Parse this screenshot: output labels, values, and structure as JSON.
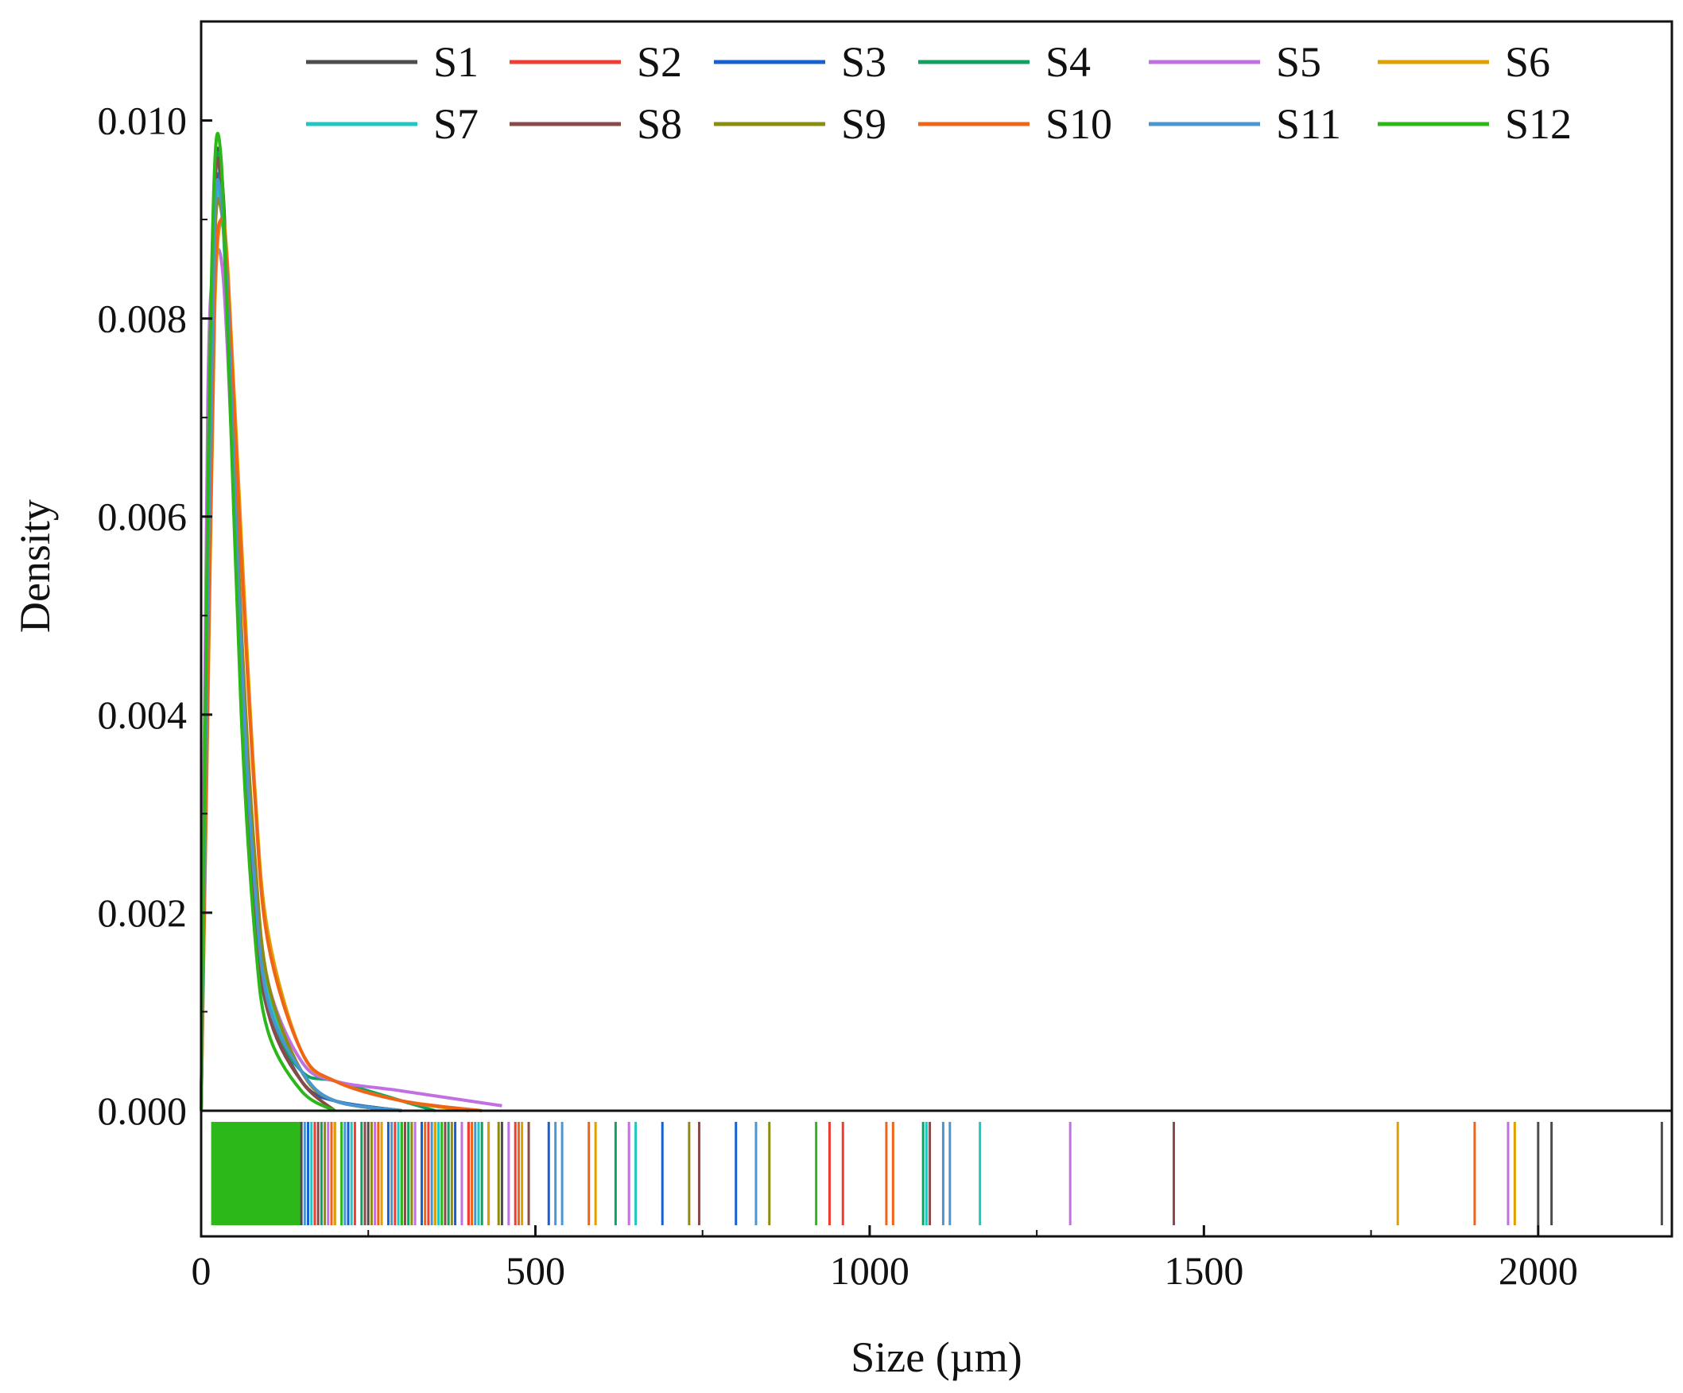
{
  "chart_data": {
    "type": "line",
    "title": "",
    "xlabel": "Size (µm)",
    "ylabel": "Density",
    "xlim": [
      0,
      2200
    ],
    "ylim": [
      0,
      0.011
    ],
    "x_ticks": [
      0,
      500,
      1000,
      1500,
      2000
    ],
    "x_tick_labels": [
      "0",
      "500",
      "1000",
      "1500",
      "2000"
    ],
    "y_ticks": [
      0,
      0.002,
      0.004,
      0.006,
      0.008,
      0.01
    ],
    "y_tick_labels": [
      "0.000",
      "0.002",
      "0.004",
      "0.006",
      "0.008",
      "0.010"
    ],
    "legend_position": "top",
    "grid": false,
    "rug_panel": true,
    "series": [
      {
        "name": "S1",
        "color": "#4d4d4d",
        "x": [
          0,
          10,
          20,
          30,
          40,
          60,
          80,
          100,
          150,
          200,
          300
        ],
        "y": [
          0,
          0.0055,
          0.0093,
          0.0095,
          0.0082,
          0.0045,
          0.0022,
          0.001,
          0.0003,
          0.0001,
          0
        ],
        "rug": [
          150,
          200,
          250,
          300,
          350,
          400,
          450,
          2000,
          2020,
          2185
        ]
      },
      {
        "name": "S2",
        "color": "#f03c32",
        "x": [
          0,
          10,
          20,
          30,
          40,
          60,
          80,
          100,
          150,
          200,
          300
        ],
        "y": [
          0,
          0.005,
          0.0088,
          0.0092,
          0.008,
          0.0048,
          0.0025,
          0.0012,
          0.0004,
          0.0001,
          0
        ],
        "rug": [
          170,
          230,
          290,
          340,
          400,
          470,
          940,
          960
        ]
      },
      {
        "name": "S3",
        "color": "#1660d0",
        "x": [
          0,
          10,
          20,
          30,
          40,
          60,
          80,
          100,
          150,
          200,
          300
        ],
        "y": [
          0,
          0.0052,
          0.009,
          0.0093,
          0.0081,
          0.0046,
          0.0023,
          0.0011,
          0.0003,
          0.0001,
          0
        ],
        "rug": [
          160,
          220,
          280,
          330,
          380,
          430,
          520,
          690,
          800
        ]
      },
      {
        "name": "S4",
        "color": "#10a060",
        "x": [
          0,
          10,
          20,
          30,
          40,
          60,
          80,
          100,
          150,
          200,
          300,
          350
        ],
        "y": [
          0,
          0.006,
          0.0094,
          0.0093,
          0.0078,
          0.0042,
          0.002,
          0.001,
          0.0004,
          0.0003,
          0.0001,
          0
        ],
        "rug": [
          180,
          240,
          310,
          370,
          420,
          620,
          1080
        ]
      },
      {
        "name": "S5",
        "color": "#c070e0",
        "x": [
          0,
          10,
          20,
          30,
          40,
          60,
          80,
          100,
          150,
          200,
          300,
          450
        ],
        "y": [
          0,
          0.0072,
          0.0085,
          0.0086,
          0.0076,
          0.0046,
          0.0025,
          0.0013,
          0.0005,
          0.0003,
          0.0002,
          5e-05
        ],
        "rug": [
          190,
          260,
          320,
          390,
          460,
          640,
          1300,
          1955
        ]
      },
      {
        "name": "S6",
        "color": "#e0a000",
        "x": [
          0,
          10,
          20,
          30,
          40,
          60,
          80,
          100,
          150,
          200,
          300,
          400
        ],
        "y": [
          0,
          0.004,
          0.008,
          0.009,
          0.0085,
          0.0058,
          0.0033,
          0.0018,
          0.0006,
          0.0003,
          0.0001,
          0
        ],
        "rug": [
          200,
          270,
          350,
          430,
          480,
          590,
          1790,
          1965
        ]
      },
      {
        "name": "S7",
        "color": "#20c8c0",
        "x": [
          0,
          10,
          20,
          30,
          40,
          60,
          80,
          100,
          150,
          200,
          300
        ],
        "y": [
          0,
          0.005,
          0.0089,
          0.0091,
          0.008,
          0.0047,
          0.0024,
          0.0012,
          0.0004,
          0.0001,
          0
        ],
        "rug": [
          165,
          225,
          295,
          355,
          415,
          650,
          1085,
          1165
        ]
      },
      {
        "name": "S8",
        "color": "#8b4a4a",
        "x": [
          0,
          10,
          20,
          30,
          40,
          60,
          80,
          100,
          150,
          200
        ],
        "y": [
          0,
          0.0055,
          0.0092,
          0.0094,
          0.008,
          0.0044,
          0.0021,
          0.001,
          0.0003,
          0
        ],
        "rug": [
          175,
          245,
          305,
          365,
          490,
          745,
          1090,
          1455
        ]
      },
      {
        "name": "S9",
        "color": "#8c8c10",
        "x": [
          0,
          10,
          20,
          30,
          40,
          60,
          80,
          100,
          150,
          200,
          300
        ],
        "y": [
          0,
          0.0048,
          0.0087,
          0.0091,
          0.0081,
          0.0049,
          0.0026,
          0.0013,
          0.0004,
          0.0001,
          0
        ],
        "rug": [
          185,
          255,
          315,
          375,
          445,
          730,
          850
        ]
      },
      {
        "name": "S10",
        "color": "#f06418",
        "x": [
          0,
          10,
          20,
          30,
          40,
          60,
          80,
          100,
          150,
          200,
          300,
          420
        ],
        "y": [
          0,
          0.0042,
          0.0082,
          0.009,
          0.0084,
          0.0056,
          0.0032,
          0.0017,
          0.0006,
          0.0003,
          0.0001,
          0
        ],
        "rug": [
          195,
          265,
          335,
          405,
          475,
          580,
          1025,
          1035,
          1905
        ]
      },
      {
        "name": "S11",
        "color": "#4a96d0",
        "x": [
          0,
          10,
          20,
          30,
          40,
          60,
          80,
          100,
          150,
          200,
          300
        ],
        "y": [
          0,
          0.0053,
          0.009,
          0.0092,
          0.0081,
          0.0046,
          0.0023,
          0.0011,
          0.0004,
          0.0001,
          0
        ],
        "rug": [
          155,
          215,
          285,
          345,
          410,
          530,
          540,
          830,
          1110,
          1120
        ]
      },
      {
        "name": "S12",
        "color": "#2cb818",
        "x": [
          0,
          10,
          20,
          30,
          40,
          60,
          80,
          100,
          150,
          200
        ],
        "y": [
          0,
          0.0062,
          0.0095,
          0.0096,
          0.0078,
          0.004,
          0.0018,
          0.0008,
          0.0002,
          0
        ],
        "rug": [
          140,
          210,
          300,
          360,
          920
        ]
      }
    ]
  }
}
